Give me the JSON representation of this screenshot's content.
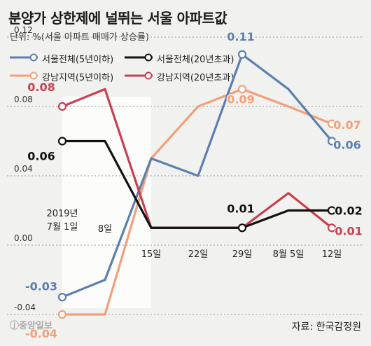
{
  "title": "분양가 상한제에 널뛰는 서울 아파트값",
  "unit": "단위: %(서울 아파트 매매가 상승률)",
  "source": "자료: 한국감정원",
  "logo": "ⓙ중앙일보",
  "colors": {
    "seoul_new": "#5b7fae",
    "seoul_old": "#111111",
    "gangnam_new": "#f2a07a",
    "gangnam_old": "#c84050",
    "shade": "#ffffff"
  },
  "chart_data": {
    "type": "line",
    "title": "분양가 상한제에 널뛰는 서울 아파트값",
    "ylabel": "단위: %(서울 아파트 매매가 상승률)",
    "categories": [
      "2019년 7월 1일",
      "8일",
      "15일",
      "22일",
      "29일",
      "8월 5일",
      "12일"
    ],
    "ylim": [
      -0.06,
      0.13
    ],
    "yticks": [
      "0.12",
      "0.08",
      "0.04",
      "0.00",
      "-0.04"
    ],
    "ytick_values": [
      0.12,
      0.08,
      0.04,
      0.0,
      -0.04
    ],
    "grid": true,
    "legend_position": "top-left",
    "series": [
      {
        "name": "서울전체(5년이하)",
        "color_key": "seoul_new",
        "values": [
          -0.03,
          -0.02,
          0.05,
          0.04,
          0.11,
          0.09,
          0.06
        ]
      },
      {
        "name": "서울전체(20년초과)",
        "color_key": "seoul_old",
        "values": [
          0.06,
          0.06,
          0.01,
          0.01,
          0.01,
          0.02,
          0.02
        ]
      },
      {
        "name": "강남지역(5년이하)",
        "color_key": "gangnam_new",
        "values": [
          -0.04,
          -0.04,
          0.05,
          0.08,
          0.09,
          0.08,
          0.07
        ]
      },
      {
        "name": "강남지역(20년초과)",
        "color_key": "gangnam_old",
        "values": [
          0.08,
          0.09,
          0.01,
          0.01,
          0.01,
          0.03,
          0.01
        ]
      }
    ],
    "annotations": [
      {
        "series": 2,
        "index": 0,
        "text": "-0.04",
        "color_key": "gangnam_new"
      },
      {
        "series": 0,
        "index": 0,
        "text": "-0.03",
        "color_key": "seoul_new"
      },
      {
        "series": 3,
        "index": 0,
        "text": "0.08",
        "color_key": "gangnam_old"
      },
      {
        "series": 1,
        "index": 0,
        "text": "0.06",
        "color_key": "seoul_old"
      },
      {
        "series": 0,
        "index": 4,
        "text": "0.11",
        "color_key": "seoul_new"
      },
      {
        "series": 2,
        "index": 4,
        "text": "0.09",
        "color_key": "gangnam_new"
      },
      {
        "series": 1,
        "index": 4,
        "text": "0.01",
        "color_key": "seoul_old"
      },
      {
        "series": 2,
        "index": 6,
        "text": "0.07",
        "color_key": "gangnam_new"
      },
      {
        "series": 0,
        "index": 6,
        "text": "0.06",
        "color_key": "seoul_new"
      },
      {
        "series": 1,
        "index": 6,
        "text": "0.02",
        "color_key": "seoul_old"
      },
      {
        "series": 3,
        "index": 6,
        "text": "0.01",
        "color_key": "gangnam_old"
      }
    ]
  }
}
